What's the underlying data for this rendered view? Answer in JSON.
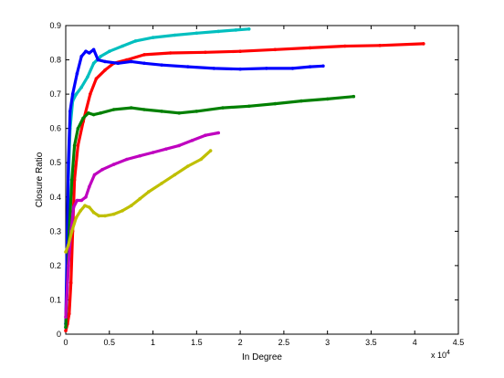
{
  "chart_data": {
    "type": "line",
    "title": "",
    "xlabel": "In Degree",
    "ylabel": "Closure Ratio",
    "x_exponent_label": "x 10",
    "x_exponent_power": "4",
    "xlim": [
      0,
      45000
    ],
    "ylim": [
      0,
      0.9
    ],
    "x_tick_labels": [
      "0",
      "0.5",
      "1",
      "1.5",
      "2",
      "2.5",
      "3",
      "3.5",
      "4",
      "4.5"
    ],
    "y_tick_labels": [
      "0",
      "0.1",
      "0.2",
      "0.3",
      "0.4",
      "0.5",
      "0.6",
      "0.7",
      "0.8",
      "0.9"
    ],
    "grid": false,
    "series": [
      {
        "color": "#00BFBF",
        "points": [
          [
            0,
            0.02
          ],
          [
            150,
            0.2
          ],
          [
            300,
            0.45
          ],
          [
            500,
            0.6
          ],
          [
            800,
            0.68
          ],
          [
            1200,
            0.7
          ],
          [
            1800,
            0.72
          ],
          [
            2500,
            0.75
          ],
          [
            3200,
            0.79
          ],
          [
            4000,
            0.81
          ],
          [
            5000,
            0.825
          ],
          [
            6500,
            0.84
          ],
          [
            8000,
            0.855
          ],
          [
            10000,
            0.865
          ],
          [
            12500,
            0.872
          ],
          [
            15000,
            0.878
          ],
          [
            17500,
            0.883
          ],
          [
            19500,
            0.887
          ],
          [
            21000,
            0.89
          ]
        ]
      },
      {
        "color": "#FF0000",
        "points": [
          [
            0,
            0.01
          ],
          [
            200,
            0.03
          ],
          [
            400,
            0.06
          ],
          [
            600,
            0.15
          ],
          [
            800,
            0.3
          ],
          [
            1000,
            0.45
          ],
          [
            1400,
            0.55
          ],
          [
            2000,
            0.62
          ],
          [
            2800,
            0.7
          ],
          [
            3500,
            0.745
          ],
          [
            4500,
            0.77
          ],
          [
            5500,
            0.79
          ],
          [
            7000,
            0.8
          ],
          [
            9000,
            0.815
          ],
          [
            12000,
            0.82
          ],
          [
            16000,
            0.822
          ],
          [
            20000,
            0.825
          ],
          [
            24000,
            0.83
          ],
          [
            28000,
            0.835
          ],
          [
            32000,
            0.84
          ],
          [
            36000,
            0.842
          ],
          [
            41000,
            0.847
          ]
        ]
      },
      {
        "color": "#0000FF",
        "points": [
          [
            0,
            0.03
          ],
          [
            150,
            0.25
          ],
          [
            300,
            0.5
          ],
          [
            500,
            0.65
          ],
          [
            800,
            0.7
          ],
          [
            1300,
            0.76
          ],
          [
            1800,
            0.81
          ],
          [
            2300,
            0.825
          ],
          [
            2700,
            0.82
          ],
          [
            3200,
            0.83
          ],
          [
            3700,
            0.8
          ],
          [
            4500,
            0.795
          ],
          [
            6000,
            0.79
          ],
          [
            7500,
            0.795
          ],
          [
            9000,
            0.79
          ],
          [
            11000,
            0.785
          ],
          [
            14000,
            0.78
          ],
          [
            17000,
            0.775
          ],
          [
            20000,
            0.773
          ],
          [
            23000,
            0.775
          ],
          [
            26000,
            0.775
          ],
          [
            28000,
            0.78
          ],
          [
            29500,
            0.782
          ]
        ]
      },
      {
        "color": "#008000",
        "points": [
          [
            0,
            0.02
          ],
          [
            200,
            0.15
          ],
          [
            400,
            0.3
          ],
          [
            700,
            0.45
          ],
          [
            1000,
            0.55
          ],
          [
            1400,
            0.6
          ],
          [
            2000,
            0.63
          ],
          [
            2600,
            0.645
          ],
          [
            3200,
            0.64
          ],
          [
            4000,
            0.645
          ],
          [
            5500,
            0.655
          ],
          [
            7500,
            0.66
          ],
          [
            9000,
            0.655
          ],
          [
            11000,
            0.65
          ],
          [
            13000,
            0.645
          ],
          [
            15000,
            0.65
          ],
          [
            18000,
            0.66
          ],
          [
            21000,
            0.665
          ],
          [
            24000,
            0.672
          ],
          [
            27000,
            0.68
          ],
          [
            30000,
            0.686
          ],
          [
            33000,
            0.693
          ]
        ]
      },
      {
        "color": "#BF00BF",
        "points": [
          [
            0,
            0.05
          ],
          [
            300,
            0.2
          ],
          [
            600,
            0.3
          ],
          [
            900,
            0.37
          ],
          [
            1300,
            0.39
          ],
          [
            1800,
            0.39
          ],
          [
            2300,
            0.4
          ],
          [
            2700,
            0.43
          ],
          [
            3300,
            0.465
          ],
          [
            4200,
            0.48
          ],
          [
            5500,
            0.495
          ],
          [
            7000,
            0.51
          ],
          [
            8500,
            0.52
          ],
          [
            10000,
            0.53
          ],
          [
            11500,
            0.54
          ],
          [
            13000,
            0.55
          ],
          [
            14500,
            0.565
          ],
          [
            16000,
            0.58
          ],
          [
            17500,
            0.587
          ]
        ]
      },
      {
        "color": "#BFBF00",
        "points": [
          [
            0,
            0.24
          ],
          [
            300,
            0.26
          ],
          [
            700,
            0.3
          ],
          [
            1200,
            0.34
          ],
          [
            1700,
            0.36
          ],
          [
            2200,
            0.375
          ],
          [
            2700,
            0.37
          ],
          [
            3200,
            0.355
          ],
          [
            3800,
            0.345
          ],
          [
            4500,
            0.345
          ],
          [
            5500,
            0.35
          ],
          [
            6500,
            0.36
          ],
          [
            7500,
            0.375
          ],
          [
            8500,
            0.395
          ],
          [
            9500,
            0.415
          ],
          [
            11000,
            0.44
          ],
          [
            12500,
            0.465
          ],
          [
            14000,
            0.49
          ],
          [
            15500,
            0.51
          ],
          [
            16600,
            0.535
          ]
        ]
      }
    ]
  }
}
